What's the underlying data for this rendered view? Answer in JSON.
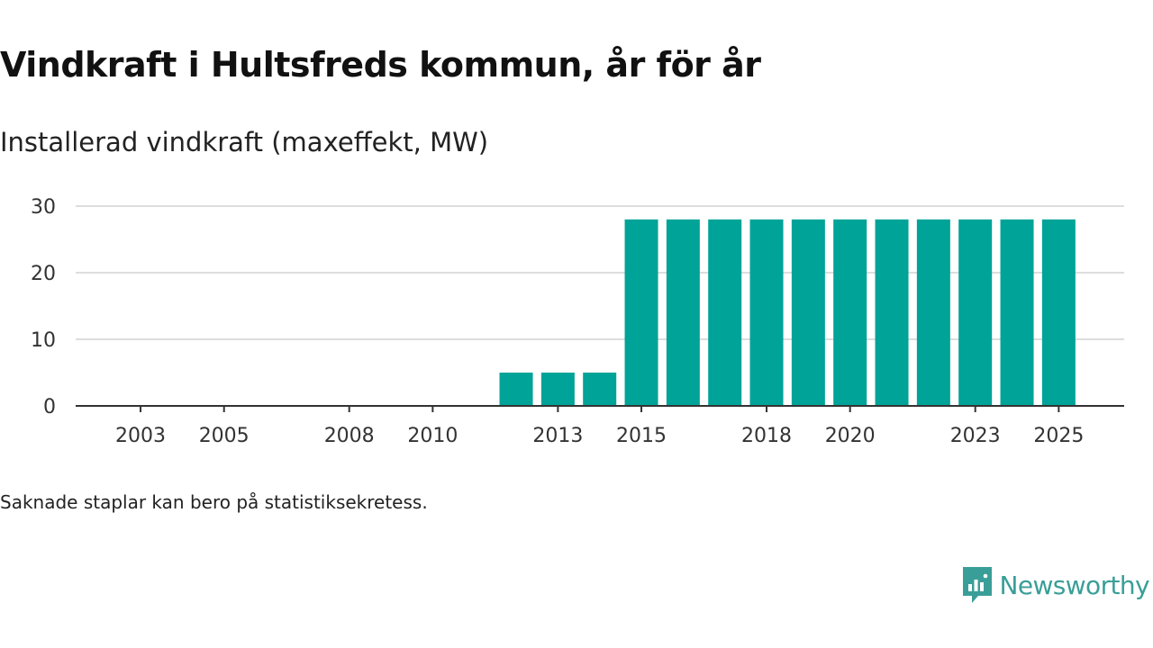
{
  "title": "Vindkraft i Hultsfreds kommun, år för år",
  "subtitle": "Installerad vindkraft (maxeffekt, MW)",
  "footnote": "Saknade staplar kan bero på statistiksekretess.",
  "brand": {
    "name": "Newsworthy",
    "color": "#3a9e98",
    "icon": "newsworthy-logo-icon"
  },
  "chart_data": {
    "type": "bar",
    "title": "Vindkraft i Hultsfreds kommun, år för år",
    "ylabel": "Installerad vindkraft (maxeffekt, MW)",
    "xlabel": "",
    "categories": [
      "2002",
      "2003",
      "2004",
      "2005",
      "2006",
      "2007",
      "2008",
      "2009",
      "2010",
      "2011",
      "2012",
      "2013",
      "2014",
      "2015",
      "2016",
      "2017",
      "2018",
      "2019",
      "2020",
      "2021",
      "2022",
      "2023",
      "2024",
      "2025"
    ],
    "values": [
      0,
      0,
      0,
      0,
      0,
      0,
      0,
      0,
      0,
      0,
      5,
      5,
      5,
      28,
      28,
      28,
      28,
      28,
      28,
      28,
      28,
      28,
      28,
      28
    ],
    "xtick_labels": [
      "2003",
      "2005",
      "2008",
      "2010",
      "2013",
      "2015",
      "2018",
      "2020",
      "2023",
      "2025"
    ],
    "yticks": [
      0,
      10,
      20,
      30
    ],
    "ylim": [
      0,
      30
    ],
    "grid": true,
    "bar_color": "#00a398"
  }
}
